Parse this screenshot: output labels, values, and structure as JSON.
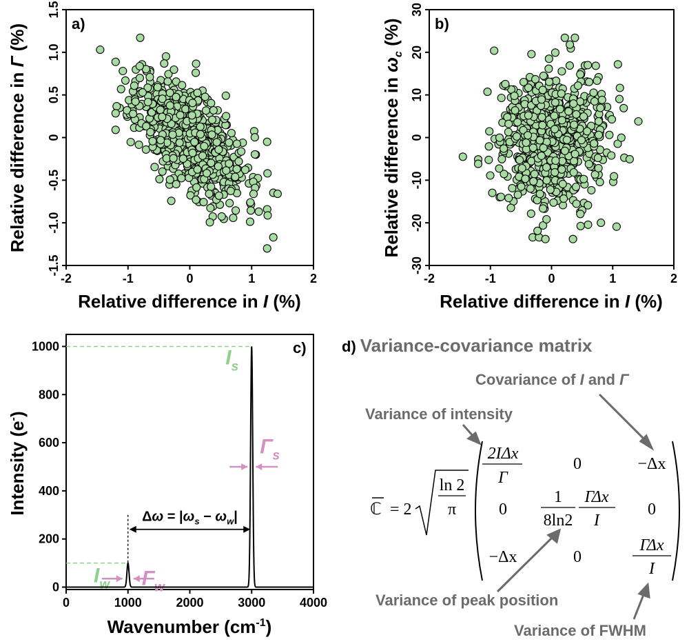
{
  "chart_data": [
    {
      "panel": "a)",
      "type": "scatter",
      "xlabel_prefix": "Relative difference in ",
      "xlabel_symbol": "I",
      "xlabel_suffix": " (%)",
      "ylabel_prefix": "Relative difference in ",
      "ylabel_symbol": "Γ",
      "ylabel_suffix": " (%)",
      "xlim": [
        -2,
        2
      ],
      "ylim": [
        -1.5,
        1.5
      ],
      "xticks": [
        "-2",
        "-1",
        "0",
        "1",
        "2"
      ],
      "yticks": [
        "-1.5",
        "-1.0",
        "-0.5",
        "0",
        "0.5",
        "1.0",
        "1.5"
      ],
      "ytick_values": [
        -1.5,
        -1.0,
        -0.5,
        0,
        0.5,
        1.0,
        1.5
      ],
      "xtick_values": [
        -2,
        -1,
        0,
        1,
        2
      ],
      "point_color": "#a8dca2",
      "n_points": 700,
      "correlation": -0.6,
      "x_std": 0.45,
      "y_std": 0.37,
      "outliers": [
        [
          -1.45,
          1.03
        ],
        [
          1.25,
          -1.3
        ],
        [
          1.42,
          -0.66
        ],
        [
          1.25,
          -0.05
        ]
      ]
    },
    {
      "panel": "b)",
      "type": "scatter",
      "xlabel_prefix": "Relative difference in ",
      "xlabel_symbol": "I",
      "xlabel_suffix": " (%)",
      "ylabel_prefix": "Relative difference in ",
      "ylabel_symbol": "ω",
      "ylabel_sub": "c",
      "ylabel_suffix": " (%)",
      "xlim": [
        -2,
        2
      ],
      "ylim": [
        -30,
        30
      ],
      "xticks": [
        "-2",
        "-1",
        "0",
        "1",
        "2"
      ],
      "yticks": [
        "-30",
        "-20",
        "-10",
        "0",
        "10",
        "20",
        "30"
      ],
      "ytick_values": [
        -30,
        -20,
        -10,
        0,
        10,
        20,
        30
      ],
      "xtick_values": [
        -2,
        -1,
        0,
        1,
        2
      ],
      "point_color": "#a8dca2",
      "n_points": 700,
      "correlation": 0.0,
      "x_std": 0.45,
      "y_std": 8,
      "outliers": [
        [
          -1.45,
          -4.5
        ],
        [
          1.42,
          3.8
        ],
        [
          0.3,
          21.8
        ],
        [
          -0.1,
          -23.8
        ],
        [
          0.35,
          -23.8
        ]
      ]
    },
    {
      "panel": "c)",
      "type": "line",
      "xlabel": "Wavenumber (cm",
      "xlabel_sup": "-1",
      "xlabel_end": ")",
      "ylabel": "Intensity (e",
      "ylabel_sup": "-",
      "ylabel_end": ")",
      "xlim": [
        0,
        4000
      ],
      "ylim": [
        -10,
        1050
      ],
      "xticks": [
        "0",
        "1000",
        "2000",
        "3000",
        "4000"
      ],
      "xtick_values": [
        0,
        1000,
        2000,
        3000,
        4000
      ],
      "yticks": [
        "0",
        "200",
        "400",
        "600",
        "800",
        "1000"
      ],
      "ytick_values": [
        0,
        200,
        400,
        600,
        800,
        1000
      ],
      "peaks": [
        {
          "center": 1000,
          "height": 100,
          "fwhm": 40
        },
        {
          "center": 3000,
          "height": 1000,
          "fwhm": 40
        }
      ],
      "annotations": {
        "Is_main": "I",
        "Is_sub": "s",
        "Iw_main": "I",
        "Iw_sub": "w",
        "Gs_main": "Γ",
        "Gs_sub": "s",
        "Gw_main": "Γ",
        "Gw_sub": "w",
        "delta_text_1": "Δ",
        "delta_text_2": "ω",
        "delta_text_3": " = |",
        "delta_text_4": "ω",
        "delta_sub_s": "s",
        "delta_text_5": " − ",
        "delta_text_6": "ω",
        "delta_sub_w": "w",
        "delta_text_7": "|"
      },
      "green_color": "#8fd08a",
      "pink_color": "#d58fc3"
    }
  ],
  "panel_d": {
    "letter": "d)",
    "title": "Variance-covariance matrix",
    "lbl_covariance_1": "Covariance of ",
    "lbl_covariance_I": "I",
    "lbl_covariance_2": " and ",
    "lbl_covariance_G": "Γ",
    "lbl_variance_intensity": "Variance of intensity",
    "lbl_variance_peak": "Variance of peak position",
    "lbl_variance_fwhm": "Variance of FWHM",
    "matrix_symbol": "ℂ",
    "equals": "= 2",
    "sqrt_num": "ln 2",
    "sqrt_den": "π",
    "m11_num": "2IΔx",
    "m11_den": "Γ",
    "m12": "0",
    "m13": "−Δx",
    "m21": "0",
    "m22_frac1_num": "1",
    "m22_frac1_den": "8ln2",
    "m22_frac2_num": "ΓΔx",
    "m22_frac2_den": "I",
    "m23": "0",
    "m31": "−Δx",
    "m32": "0",
    "m33_num": "ΓΔx",
    "m33_den": "I",
    "gray_color": "#6b6b6b"
  }
}
